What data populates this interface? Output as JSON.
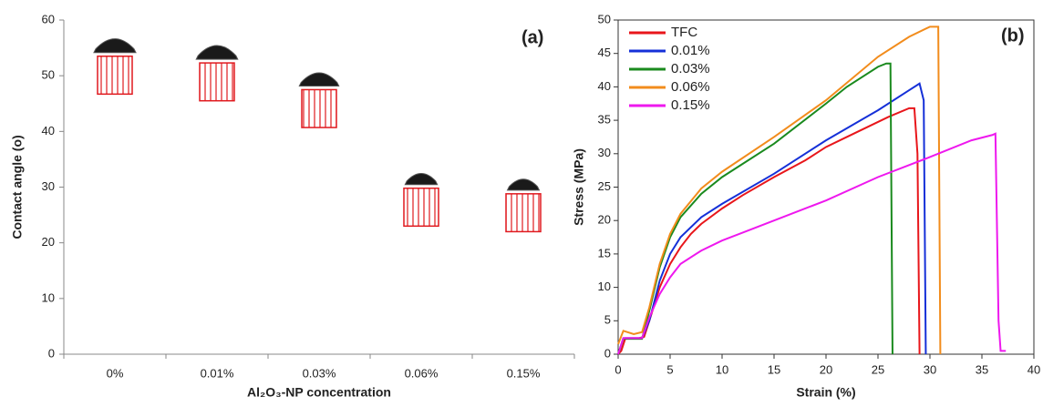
{
  "chart_data": [
    {
      "type": "floating-bar",
      "annotation": "(a)",
      "y_label": "Contact angle (o)",
      "x_label": "Al₂O₃-NP concentration",
      "categories": [
        "0%",
        "0.01%",
        "0.03%",
        "0.06%",
        "0.15%"
      ],
      "low": [
        46.7,
        45.5,
        40.7,
        23,
        22
      ],
      "high": [
        53.5,
        52.3,
        47.5,
        29.8,
        28.8
      ],
      "color": "#e0191e",
      "ylim": [
        0,
        60
      ],
      "yticks": [
        0,
        10,
        20,
        30,
        40,
        50,
        60
      ]
    },
    {
      "type": "line",
      "annotation": "(b)",
      "x_label": "Strain (%)",
      "y_label": "Stress (MPa)",
      "xlim": [
        0,
        40
      ],
      "xticks": [
        0,
        5,
        10,
        15,
        20,
        25,
        30,
        35,
        40
      ],
      "ylim": [
        0,
        50
      ],
      "yticks": [
        0,
        5,
        10,
        15,
        20,
        25,
        30,
        35,
        40,
        45,
        50
      ],
      "legend": "upper-left",
      "series": [
        {
          "name": "TFC",
          "color": "#e8161b",
          "x": [
            0,
            0.3,
            0.7,
            2,
            2.5,
            3,
            4,
            5,
            6,
            7,
            8,
            10,
            12,
            15,
            18,
            20,
            22,
            24,
            26,
            28,
            28.5,
            28.8,
            29
          ],
          "values": [
            0,
            0.5,
            2.4,
            2.4,
            2.6,
            5,
            10,
            13.5,
            16,
            18,
            19.5,
            21.8,
            23.8,
            26.5,
            29,
            31,
            32.5,
            34,
            35.5,
            36.8,
            36.8,
            30,
            0
          ]
        },
        {
          "name": "0.01%",
          "color": "#1530d8",
          "x": [
            0,
            0.5,
            2.3,
            3,
            4,
            5,
            6,
            8,
            10,
            15,
            20,
            25,
            28,
            29,
            29.4,
            29.6
          ],
          "values": [
            0,
            2.4,
            2.4,
            5,
            11,
            15,
            17.5,
            20.5,
            22.5,
            27,
            32,
            36.5,
            39.5,
            40.5,
            38,
            0
          ]
        },
        {
          "name": "0.03%",
          "color": "#1a8a1e",
          "x": [
            0,
            0.5,
            2.3,
            3,
            4,
            5,
            6,
            8,
            10,
            15,
            20,
            22,
            25,
            25.8,
            26.2,
            26.4
          ],
          "values": [
            0,
            2.3,
            2.3,
            6.5,
            13,
            17.5,
            20.5,
            24,
            26.5,
            31.5,
            37.5,
            40,
            43,
            43.5,
            43.5,
            0
          ]
        },
        {
          "name": "0.06%",
          "color": "#f28c1c",
          "x": [
            0,
            0.5,
            1.5,
            2.3,
            3,
            4,
            5,
            6,
            8,
            10,
            15,
            20,
            25,
            28,
            30,
            30.8,
            31
          ],
          "values": [
            1.5,
            3.5,
            3,
            3.3,
            7,
            13.5,
            18,
            21,
            24.8,
            27.3,
            32.5,
            38,
            44.5,
            47.5,
            49,
            49,
            0
          ]
        },
        {
          "name": "0.15%",
          "color": "#ee18ee",
          "x": [
            0,
            0.5,
            2.3,
            3,
            4,
            5,
            6,
            8,
            10,
            15,
            20,
            25,
            30,
            34,
            36,
            36.3,
            36.6,
            36.8,
            37.3
          ],
          "values": [
            0,
            2.4,
            2.4,
            5.5,
            9,
            11.5,
            13.5,
            15.5,
            17,
            20,
            23,
            26.5,
            29.5,
            32,
            32.8,
            33,
            5,
            0.5,
            0.5
          ]
        }
      ]
    }
  ]
}
